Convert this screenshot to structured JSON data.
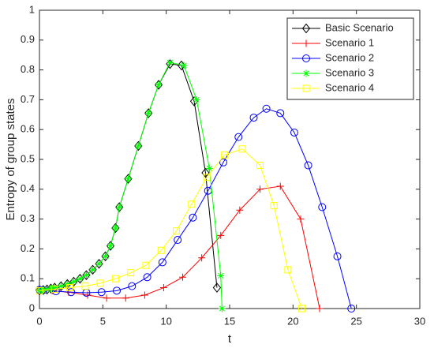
{
  "chart_data": {
    "type": "line",
    "xlabel": "t",
    "ylabel": "Entropy of group states",
    "xlim": [
      0,
      30
    ],
    "xticks": [
      0,
      5,
      10,
      15,
      20,
      25,
      30
    ],
    "ylim": [
      0,
      1
    ],
    "yticks": [
      0,
      0.1,
      0.2,
      0.3,
      0.4,
      0.5,
      0.6,
      0.7,
      0.8,
      0.9,
      1
    ],
    "legend": "upper right",
    "series": [
      {
        "name": "Basic Scenario",
        "color": "#000000",
        "marker": "diamond",
        "x": [
          0,
          0.3,
          0.6,
          0.9,
          1.2,
          1.7,
          2.2,
          2.7,
          3.2,
          3.7,
          4.2,
          4.7,
          5.2,
          5.6,
          6.0,
          6.3,
          7.0,
          7.8,
          8.6,
          9.4,
          10.3,
          11.2,
          12.2,
          13.1,
          14.0
        ],
        "values": [
          0.06,
          0.062,
          0.064,
          0.067,
          0.07,
          0.075,
          0.082,
          0.09,
          0.1,
          0.112,
          0.13,
          0.15,
          0.175,
          0.21,
          0.27,
          0.34,
          0.435,
          0.545,
          0.655,
          0.75,
          0.82,
          0.815,
          0.695,
          0.455,
          0.07
        ]
      },
      {
        "name": "Scenario 1",
        "color": "#ff0000",
        "marker": "plus",
        "x": [
          0,
          1,
          2.3,
          3.8,
          5.3,
          6.8,
          8.3,
          9.8,
          11.3,
          12.8,
          14.3,
          15.8,
          17.4,
          19.0,
          20.6,
          22.1
        ],
        "values": [
          0.06,
          0.06,
          0.055,
          0.045,
          0.035,
          0.035,
          0.045,
          0.07,
          0.105,
          0.17,
          0.245,
          0.33,
          0.4,
          0.41,
          0.3,
          0
        ]
      },
      {
        "name": "Scenario 2",
        "color": "#0000ff",
        "marker": "circle",
        "x": [
          0,
          0.3,
          1.3,
          2.5,
          3.7,
          4.9,
          6.1,
          7.3,
          8.5,
          9.7,
          10.9,
          12.1,
          13.3,
          14.5,
          15.7,
          16.9,
          17.9,
          19.0,
          20.1,
          21.2,
          22.3,
          23.5,
          24.6
        ],
        "values": [
          0.063,
          0.062,
          0.058,
          0.055,
          0.053,
          0.055,
          0.06,
          0.075,
          0.105,
          0.155,
          0.23,
          0.305,
          0.395,
          0.49,
          0.575,
          0.64,
          0.67,
          0.655,
          0.59,
          0.48,
          0.34,
          0.175,
          0
        ]
      },
      {
        "name": "Scenario 3",
        "color": "#00ff00",
        "marker": "asterisk",
        "x": [
          0,
          0.3,
          0.6,
          0.9,
          1.2,
          1.7,
          2.2,
          2.7,
          3.2,
          3.7,
          4.2,
          4.7,
          5.2,
          5.6,
          6.0,
          6.3,
          7.0,
          7.8,
          8.6,
          9.4,
          10.3,
          11.4,
          12.4,
          13.4,
          14.3,
          14.4
        ],
        "values": [
          0.06,
          0.062,
          0.064,
          0.067,
          0.07,
          0.075,
          0.082,
          0.09,
          0.1,
          0.112,
          0.13,
          0.15,
          0.175,
          0.21,
          0.27,
          0.34,
          0.435,
          0.545,
          0.655,
          0.75,
          0.825,
          0.815,
          0.7,
          0.47,
          0.11,
          0
        ]
      },
      {
        "name": "Scenario 4",
        "color": "#ffff00",
        "marker": "square",
        "x": [
          0,
          1.2,
          2.4,
          3.6,
          4.8,
          6.0,
          7.2,
          8.4,
          9.6,
          10.8,
          12.0,
          13.2,
          14.6,
          16.0,
          17.4,
          18.5,
          19.6,
          20.7
        ],
        "values": [
          0.06,
          0.065,
          0.07,
          0.075,
          0.085,
          0.1,
          0.12,
          0.145,
          0.195,
          0.26,
          0.35,
          0.44,
          0.515,
          0.535,
          0.48,
          0.345,
          0.13,
          0
        ]
      }
    ]
  }
}
